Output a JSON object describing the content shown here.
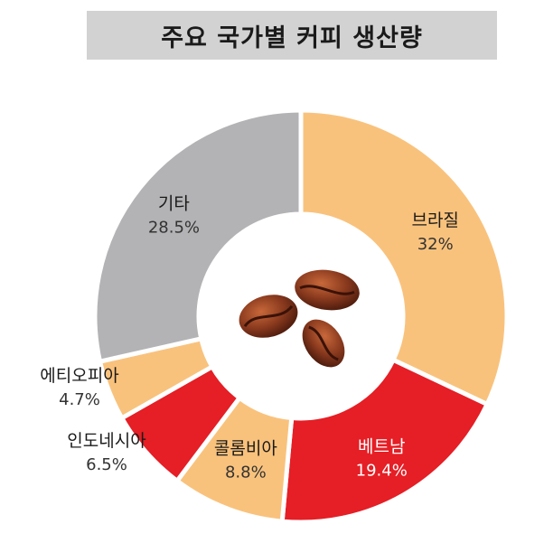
{
  "chart_data": {
    "type": "pie",
    "title": "주요 국가별 커피 생산량",
    "donut": true,
    "slices": [
      {
        "label": "브라질",
        "value": 32,
        "value_text": "32%",
        "color": "#f9c27c"
      },
      {
        "label": "베트남",
        "value": 19.4,
        "value_text": "19.4%",
        "color": "#e61e25"
      },
      {
        "label": "콜롬비아",
        "value": 8.8,
        "value_text": "8.8%",
        "color": "#f9c27c"
      },
      {
        "label": "인도네시아",
        "value": 6.5,
        "value_text": "6.5%",
        "color": "#e61e25"
      },
      {
        "label": "에티오피아",
        "value": 4.7,
        "value_text": "4.7%",
        "color": "#f9c27c"
      },
      {
        "label": "기타",
        "value": 28.5,
        "value_text": "28.5%",
        "color": "#b3b3b5"
      }
    ]
  },
  "center_image": {
    "icon": "coffee-beans-icon",
    "color": "#8a3a1e"
  }
}
